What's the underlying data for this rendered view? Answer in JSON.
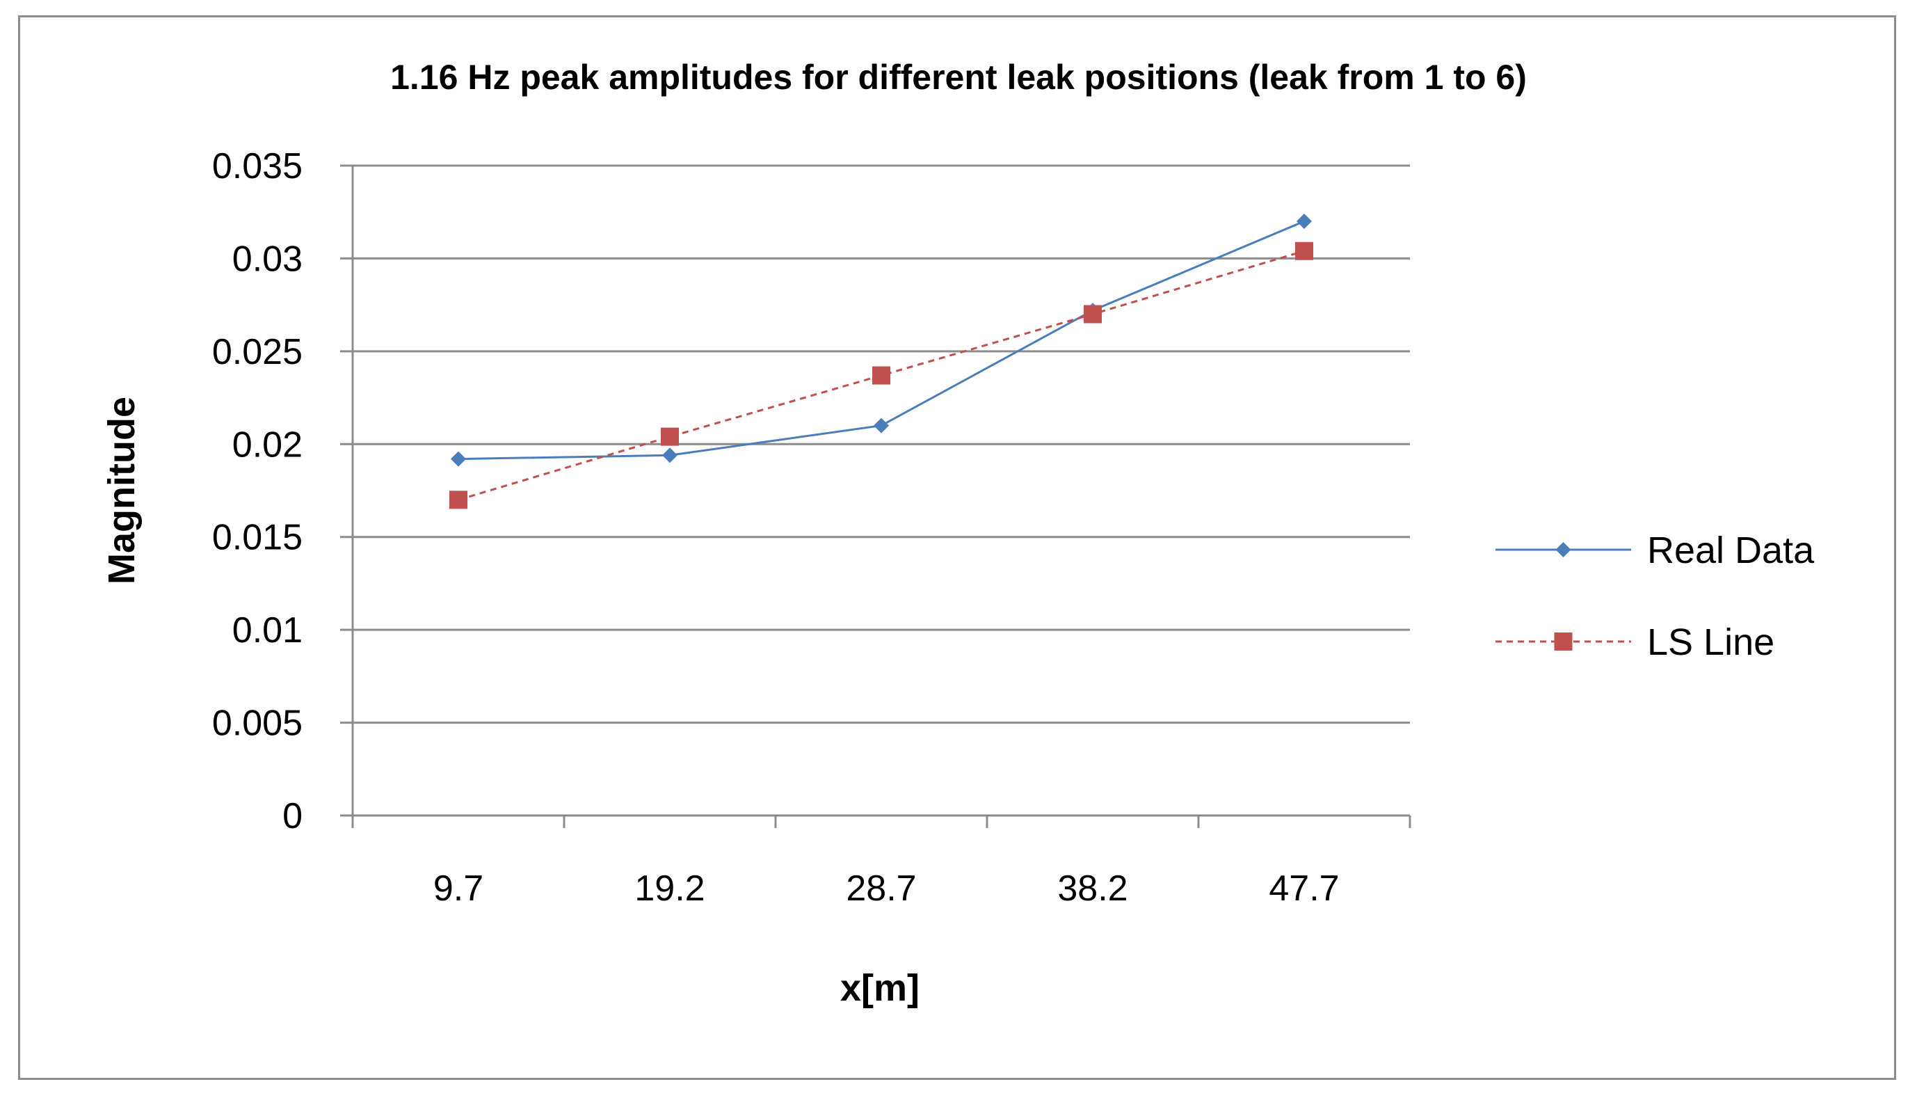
{
  "chart_data": {
    "type": "line",
    "title": "1.16 Hz peak amplitudes  for different  leak positions  (leak from 1 to 6)",
    "xlabel": "x[m]",
    "ylabel": "Magnitude",
    "categories": [
      "9.7",
      "19.2",
      "28.7",
      "38.2",
      "47.7"
    ],
    "ylim": [
      0,
      0.035
    ],
    "yticks": [
      "0",
      "0.005",
      "0.01",
      "0.015",
      "0.02",
      "0.025",
      "0.03",
      "0.035"
    ],
    "grid": "horizontal",
    "legend_position": "right",
    "series": [
      {
        "name": "Real Data",
        "values": [
          0.0192,
          0.0194,
          0.021,
          0.0272,
          0.032
        ],
        "color": "#4a7ebb",
        "marker": "diamond",
        "line": "solid"
      },
      {
        "name": "LS Line",
        "values": [
          0.017,
          0.0204,
          0.0237,
          0.027,
          0.0304
        ],
        "color": "#c0504d",
        "marker": "square",
        "line": "dashed"
      }
    ]
  }
}
